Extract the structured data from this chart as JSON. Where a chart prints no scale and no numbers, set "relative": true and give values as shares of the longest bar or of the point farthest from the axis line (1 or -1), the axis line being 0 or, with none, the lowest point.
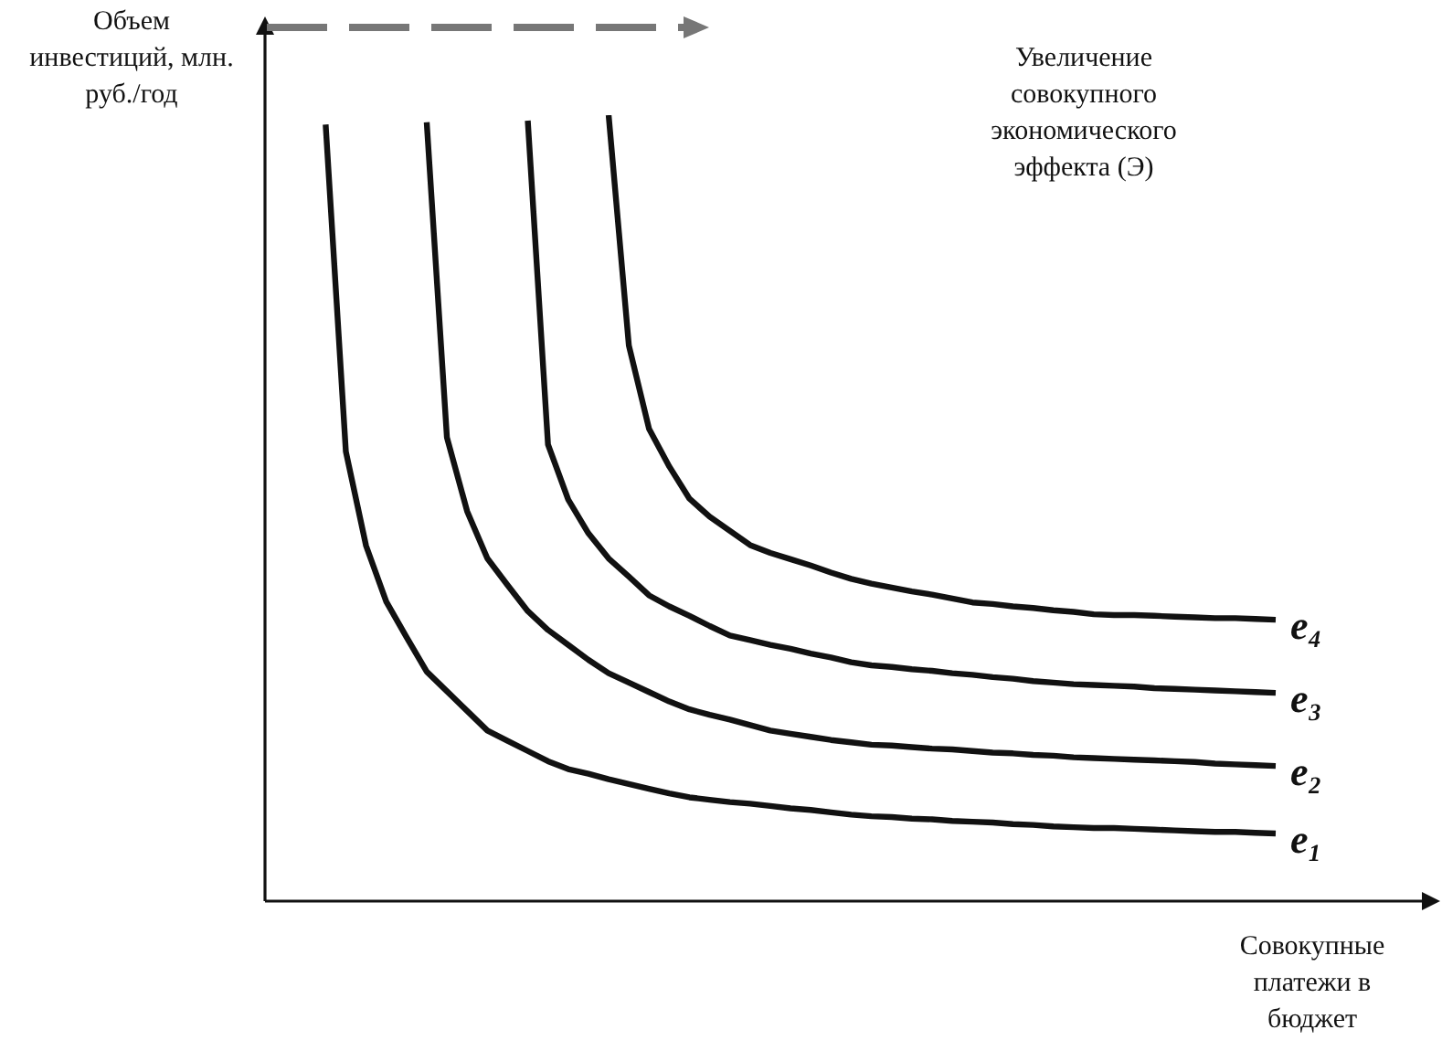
{
  "chart_data": {
    "type": "line",
    "relative": true,
    "xlabel": "Совокупные платежи в бюджет",
    "ylabel": "Объем инвестиций, млн. руб./год",
    "annotations": [
      "Увеличение совокупного экономического эффекта (Э)"
    ],
    "legend": false,
    "marker": "none",
    "line_style": "solid",
    "categories": [
      null,
      null,
      null,
      null,
      null,
      null,
      null,
      null,
      null,
      null,
      null,
      null,
      null,
      null,
      null,
      null,
      null,
      null,
      null,
      null,
      null,
      null,
      null,
      null,
      null,
      null,
      null,
      null,
      null,
      null,
      null,
      null,
      null,
      null,
      null,
      null,
      null,
      null,
      null,
      null,
      null,
      null,
      null,
      null,
      null,
      null,
      null,
      null,
      null,
      null,
      null
    ],
    "series": [
      {
        "name": "e₁",
        "color": "#111111",
        "values": [
          null,
          null,
          null,
          0.988,
          0.572,
          0.452,
          0.381,
          0.336,
          0.292,
          0.267,
          0.242,
          0.217,
          0.204,
          0.191,
          0.178,
          0.168,
          0.162,
          0.155,
          0.149,
          0.143,
          0.137,
          0.132,
          0.129,
          0.126,
          0.124,
          0.121,
          0.118,
          0.116,
          0.113,
          0.11,
          0.108,
          0.107,
          0.105,
          0.104,
          0.102,
          0.101,
          0.1,
          0.098,
          0.097,
          0.095,
          0.094,
          0.093,
          0.093,
          0.092,
          0.091,
          0.09,
          0.089,
          0.088,
          0.088,
          0.087,
          0.086
        ]
      },
      {
        "name": "e₂",
        "color": "#111111",
        "values": [
          null,
          null,
          null,
          null,
          null,
          null,
          null,
          null,
          0.991,
          0.59,
          0.496,
          0.436,
          0.402,
          0.369,
          0.345,
          0.326,
          0.307,
          0.29,
          0.278,
          0.266,
          0.254,
          0.244,
          0.237,
          0.231,
          0.224,
          0.217,
          0.213,
          0.209,
          0.205,
          0.202,
          0.199,
          0.198,
          0.196,
          0.194,
          0.193,
          0.191,
          0.189,
          0.188,
          0.186,
          0.185,
          0.183,
          0.182,
          0.181,
          0.18,
          0.179,
          0.178,
          0.177,
          0.175,
          0.174,
          0.173,
          0.172
        ]
      },
      {
        "name": "e₃",
        "color": "#111111",
        "values": [
          null,
          null,
          null,
          null,
          null,
          null,
          null,
          null,
          null,
          null,
          null,
          null,
          null,
          0.993,
          0.581,
          0.511,
          0.468,
          0.436,
          0.413,
          0.389,
          0.375,
          0.363,
          0.35,
          0.338,
          0.332,
          0.326,
          0.321,
          0.315,
          0.31,
          0.304,
          0.3,
          0.298,
          0.295,
          0.293,
          0.29,
          0.288,
          0.285,
          0.283,
          0.28,
          0.278,
          0.276,
          0.275,
          0.274,
          0.273,
          0.271,
          0.27,
          0.269,
          0.268,
          0.267,
          0.266,
          0.265
        ]
      },
      {
        "name": "e₄",
        "color": "#111111",
        "values": [
          null,
          null,
          null,
          null,
          null,
          null,
          null,
          null,
          null,
          null,
          null,
          null,
          null,
          null,
          null,
          null,
          null,
          1,
          0.707,
          0.601,
          0.553,
          0.512,
          0.489,
          0.471,
          0.453,
          0.443,
          0.435,
          0.427,
          0.418,
          0.41,
          0.404,
          0.399,
          0.394,
          0.39,
          0.385,
          0.38,
          0.378,
          0.375,
          0.373,
          0.37,
          0.368,
          0.365,
          0.364,
          0.364,
          0.363,
          0.362,
          0.361,
          0.36,
          0.36,
          0.359,
          0.358
        ]
      }
    ]
  }
}
